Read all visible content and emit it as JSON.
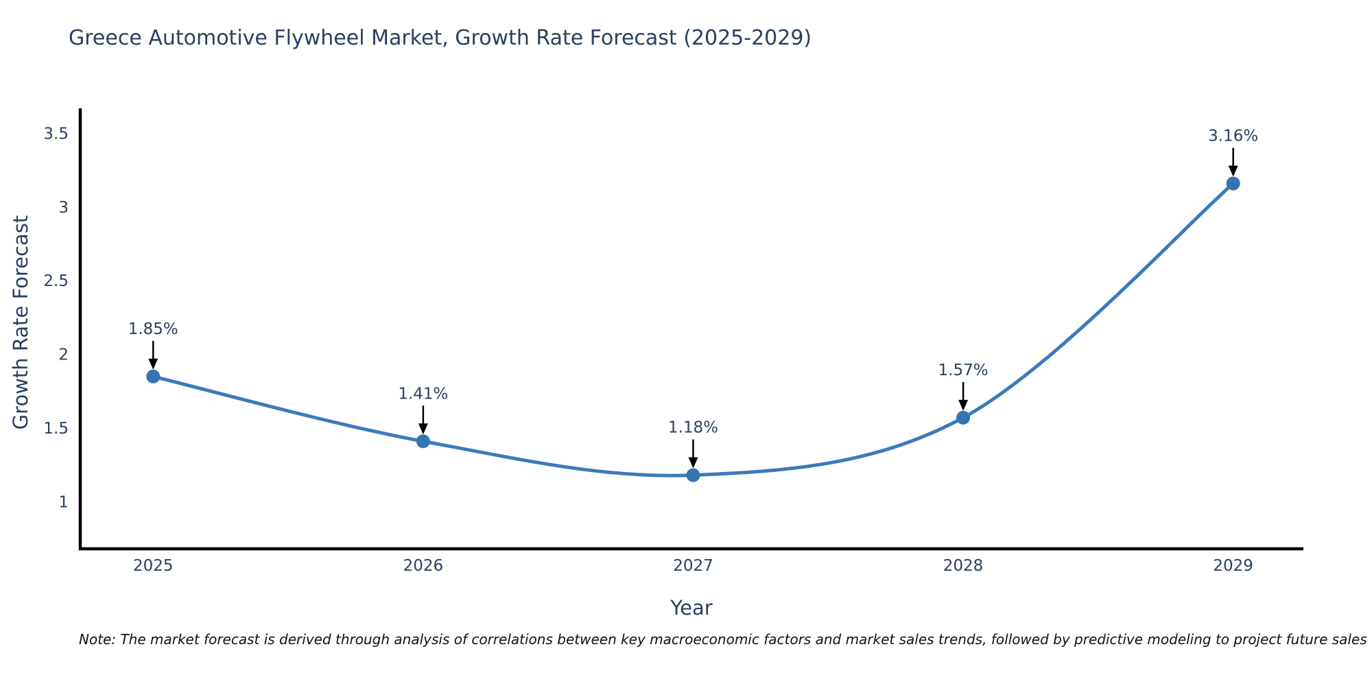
{
  "chart_data": {
    "type": "line",
    "title": "Greece Automotive Flywheel Market, Growth Rate Forecast (2025-2029)",
    "xlabel": "Year",
    "ylabel": "Growth Rate Forecast",
    "x": [
      2025,
      2026,
      2027,
      2028,
      2029
    ],
    "values": [
      1.85,
      1.41,
      1.18,
      1.57,
      3.16
    ],
    "point_labels": [
      "1.85%",
      "1.41%",
      "1.18%",
      "1.57%",
      "3.16%"
    ],
    "xticks": [
      2025,
      2026,
      2027,
      2028,
      2029
    ],
    "yticks": [
      3.5,
      3,
      2.5,
      2,
      1.5,
      1
    ],
    "xlim": [
      2024.73,
      2029.26
    ],
    "ylim": [
      0.68,
      3.67
    ],
    "grid": false,
    "line_shape": "spline",
    "legend": "none",
    "colors": {
      "line": "#3b7bb8",
      "marker": "#3474b0",
      "axis": "#000000",
      "text": "#2a3f5f",
      "annotation_arrow": "#000000"
    }
  },
  "note": "Note: The market forecast is derived through analysis of correlations between key macroeconomic factors and market sales trends, followed by predictive modeling to project future sales"
}
